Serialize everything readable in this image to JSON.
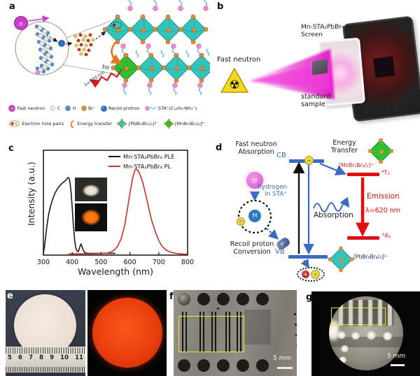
{
  "panel_a": {
    "label": "a",
    "neutron_symbol": "n",
    "hv_label": "hν",
    "lambda_label": "λ=620 nm",
    "legend_row1": [
      {
        "icon": "fast-neutron-icon",
        "label": "Fast neutron"
      },
      {
        "icon": "carbon-sphere-icon",
        "label": "C"
      },
      {
        "icon": "hydrogen-sphere-icon",
        "label": "H"
      },
      {
        "icon": "bromide-sphere-icon",
        "label": "Br⁻"
      },
      {
        "icon": "recoil-proton-icon",
        "label": "Recoil protron"
      },
      {
        "icon": "sta-cation-icon",
        "label": "STA⁺(C₁₈H₃₇NH₃⁺)"
      }
    ],
    "legend_row2": [
      {
        "icon": "electron-hole-pairs-icon",
        "label": "Electron hole pairs"
      },
      {
        "icon": "energy-transfer-icon",
        "label": "Energy transfer"
      },
      {
        "icon": "pb-octahedron-icon",
        "label": "[PbBr₂Br₄/₂]²⁻"
      },
      {
        "icon": "mn-octahedron-icon",
        "label": "[MnBr₂Br₄/₂]²⁻"
      }
    ]
  },
  "panel_b": {
    "label": "b",
    "source_label": "Fast neutron",
    "radiation_symbol": "☢",
    "screen_label_line1": "Mn-STA₂PbBr₄",
    "screen_label_line2": "Screen",
    "sample_label_line1": "standard",
    "sample_label_line2": "sample",
    "detector_label": "CCD"
  },
  "panel_c": {
    "label": "c"
  },
  "panel_d": {
    "label": "d",
    "neutron_absorption_line1": "Fast neutron",
    "neutron_absorption_line2": "Absorption",
    "neutron_symbol": "n",
    "hydrogen_symbol": "H",
    "proton_symbol": "P⁺",
    "electron_symbol": "−",
    "hole_symbol": "+",
    "recoil_line1": "Recoil proton",
    "recoil_line2": "Conversion",
    "cb_label": "CB",
    "vb_label": "VB",
    "hydrogen_sta_line1": "hydrogen",
    "hydrogen_sta_line2": "in STA⁺",
    "energy_transfer_line1": "Energy",
    "energy_transfer_line2": "Transfer",
    "mn_complex_label": "[MnBr₂Br₄/₂]²⁻",
    "t1_label": "⁴T₁",
    "a1_label": "⁶A₁",
    "emission_label": "Emission",
    "lambda_label": "λ=620 nm",
    "absorption_label": "Absorption",
    "pb_complex_label": "[PbBr₂Br₄/₂]²⁻"
  },
  "panel_e": {
    "label": "e",
    "ruler_numbers": [
      "5",
      "6",
      "7",
      "8",
      "9",
      "10",
      "11"
    ]
  },
  "panel_f": {
    "label": "f",
    "scale_bar_label": "5 mm"
  },
  "panel_g": {
    "label": "g",
    "scale_bar_label": "5 mm"
  },
  "colors": {
    "neutron_magenta": "#c93ec9",
    "beam_magenta": "#e316c8",
    "pb_octahedron_teal": "#35c4bc",
    "mn_octahedron_green": "#2ec02e",
    "bromide_orange": "#d98f3f",
    "hydrogen_blue": "#4d8fd6",
    "sta_pink": "#e98fd0",
    "band_blue": "#3a6bc4",
    "level_red": "#e01010",
    "electron_yellow": "#e8d44a",
    "annotation_yellow": "#efe332"
  },
  "chart_data": {
    "type": "line",
    "xlabel": "Wavelength (nm)",
    "ylabel": "Intensity (a.u.)",
    "xlim": [
      300,
      800
    ],
    "ylim": [
      0,
      1.22
    ],
    "x_ticks": [
      300,
      400,
      500,
      600,
      700,
      800
    ],
    "grid": false,
    "legend_position": "top-right",
    "series": [
      {
        "name": "Mn-STA₂PbBr₄ PLE",
        "color": "#1a1a1a",
        "points": [
          [
            300,
            0.02
          ],
          [
            304,
            0.1
          ],
          [
            308,
            0.22
          ],
          [
            313,
            0.36
          ],
          [
            318,
            0.47
          ],
          [
            324,
            0.56
          ],
          [
            331,
            0.64
          ],
          [
            340,
            0.72
          ],
          [
            350,
            0.78
          ],
          [
            360,
            0.82
          ],
          [
            370,
            0.85
          ],
          [
            378,
            0.87
          ],
          [
            384,
            0.9
          ],
          [
            388,
            0.9
          ],
          [
            392,
            0.85
          ],
          [
            396,
            0.73
          ],
          [
            400,
            0.55
          ],
          [
            404,
            0.35
          ],
          [
            408,
            0.19
          ],
          [
            412,
            0.09
          ],
          [
            416,
            0.05
          ],
          [
            421,
            0.04
          ],
          [
            426,
            0.09
          ],
          [
            430,
            0.13
          ],
          [
            434,
            0.1
          ],
          [
            439,
            0.05
          ],
          [
            445,
            0.025
          ],
          [
            455,
            0.02
          ],
          [
            480,
            0.02
          ],
          [
            510,
            0.02
          ],
          [
            550,
            0.02
          ]
        ]
      },
      {
        "name": "Mn-STA₂PbBr₄ PL",
        "color": "#c9302c",
        "points": [
          [
            388,
            0.015
          ],
          [
            420,
            0.015
          ],
          [
            460,
            0.015
          ],
          [
            500,
            0.018
          ],
          [
            525,
            0.025
          ],
          [
            540,
            0.045
          ],
          [
            555,
            0.09
          ],
          [
            570,
            0.19
          ],
          [
            582,
            0.35
          ],
          [
            592,
            0.55
          ],
          [
            602,
            0.76
          ],
          [
            610,
            0.9
          ],
          [
            617,
            0.985
          ],
          [
            622,
            1.0
          ],
          [
            628,
            0.985
          ],
          [
            636,
            0.93
          ],
          [
            645,
            0.84
          ],
          [
            655,
            0.7
          ],
          [
            665,
            0.55
          ],
          [
            675,
            0.41
          ],
          [
            688,
            0.27
          ],
          [
            700,
            0.17
          ],
          [
            712,
            0.1
          ],
          [
            725,
            0.06
          ],
          [
            740,
            0.035
          ],
          [
            760,
            0.02
          ],
          [
            780,
            0.013
          ],
          [
            800,
            0.01
          ]
        ]
      }
    ]
  }
}
